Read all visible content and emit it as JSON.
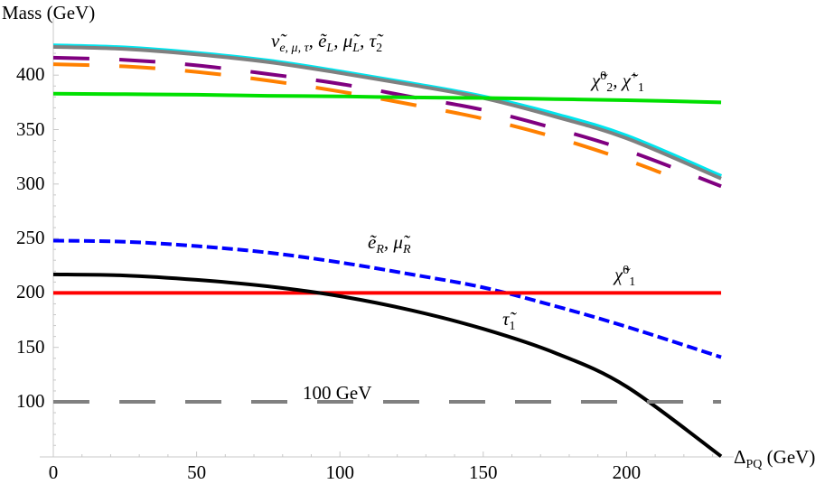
{
  "chart_data": {
    "type": "line",
    "title": "",
    "xlabel": "Δ_PQ (GeV)",
    "ylabel": "Mass (GeV)",
    "xlim": [
      0,
      233
    ],
    "ylim": [
      50,
      430
    ],
    "grid": false,
    "legend": "inline labels",
    "x_ticks": [
      0,
      50,
      100,
      150,
      200
    ],
    "y_ticks": [
      100,
      150,
      200,
      250,
      300,
      350,
      400
    ],
    "x": [
      0,
      25,
      50,
      75,
      100,
      125,
      150,
      175,
      200,
      233
    ],
    "series": [
      {
        "name": "ν̃_{e,μ,τ}, ẽ_L, μ̃_L, τ̃_2 (cyan)",
        "color": "#00e5ee",
        "style": "solid",
        "values": [
          427,
          425,
          420,
          413,
          403,
          392,
          380,
          364,
          344,
          307
        ]
      },
      {
        "name": "ν̃_{e,μ,τ}, ẽ_L, μ̃_L, τ̃_2 (gray)",
        "color": "#808080",
        "style": "solid",
        "values": [
          426,
          424,
          419,
          412,
          402,
          391,
          379,
          362,
          342,
          305
        ]
      },
      {
        "name": "purple dashed",
        "color": "#800080",
        "style": "dashed",
        "values": [
          416,
          414,
          409,
          401,
          392,
          380,
          368,
          351,
          331,
          298
        ]
      },
      {
        "name": "orange dashed",
        "color": "#ff8000",
        "style": "dashed",
        "values": [
          410,
          408,
          403,
          395,
          385,
          373,
          360,
          343,
          322,
          290
        ],
        "x_end": 212
      },
      {
        "name": "χ̃⁰₂, χ̃⁺₁",
        "color": "#00e000",
        "style": "solid",
        "values": [
          383,
          382.5,
          382,
          381,
          380.5,
          379.5,
          379,
          378,
          377,
          375
        ]
      },
      {
        "name": "ẽ_R, μ̃_R",
        "color": "#0000ff",
        "style": "dotted-dash",
        "values": [
          248,
          247,
          243,
          237,
          228,
          217,
          205,
          188,
          169,
          141
        ]
      },
      {
        "name": "χ̃⁰₁",
        "color": "#ff0000",
        "style": "solid",
        "values": [
          200,
          200,
          200,
          200,
          200,
          200,
          200,
          200,
          200,
          200
        ]
      },
      {
        "name": "τ̃₁",
        "color": "#000000",
        "style": "solid",
        "values": [
          217,
          216,
          212,
          206,
          197,
          184,
          167,
          145,
          114,
          50
        ]
      },
      {
        "name": "100 GeV",
        "color": "#808080",
        "style": "long-dashed",
        "values": [
          100,
          100,
          100,
          100,
          100,
          100,
          100,
          100,
          100,
          100
        ]
      }
    ],
    "annotations": [
      {
        "text": "ν̃_{e,μ,τ}, ẽ_L, μ̃_L, τ̃_2",
        "x": 125,
        "y": 430
      },
      {
        "text": "χ̃⁰₂, χ̃⁺₁",
        "x": 196,
        "y": 390
      },
      {
        "text": "ẽ_R, μ̃_R",
        "x": 126,
        "y": 253
      },
      {
        "text": "χ̃⁰₁",
        "x": 195,
        "y": 208
      },
      {
        "text": "τ̃₁",
        "x": 160,
        "y": 168
      },
      {
        "text": "100 GeV",
        "x": 105,
        "y": 105
      }
    ]
  },
  "labels": {
    "ylabel": "Mass (GeV)",
    "xlabel_main": "Δ",
    "xlabel_sub": "PQ",
    "xlabel_unit": " (GeV)",
    "ann_heavy": "ν̃",
    "ann_heavy_sub": "e, μ, τ",
    "ann_heavy_rest1": ", ẽ",
    "ann_heavy_sub2": "L",
    "ann_heavy_rest2": ", μ̃",
    "ann_heavy_sub3": "L",
    "ann_heavy_rest3": ", τ̃",
    "ann_heavy_sub4": "2",
    "ann_chi2_a": "χ̃",
    "ann_chi2_sup": "0",
    "ann_chi2_sub": "2",
    "ann_chi2_b": ", χ̃",
    "ann_chi2_sup2": "+",
    "ann_chi2_sub2": "1",
    "ann_eR_a": "ẽ",
    "ann_eR_sub": "R",
    "ann_eR_b": ", μ̃",
    "ann_eR_sub2": "R",
    "ann_chi1": "χ̃",
    "ann_chi1_sup": "0",
    "ann_chi1_sub": "1",
    "ann_tau1": "τ̃",
    "ann_tau1_sub": "1",
    "ann_100": "100 GeV"
  }
}
